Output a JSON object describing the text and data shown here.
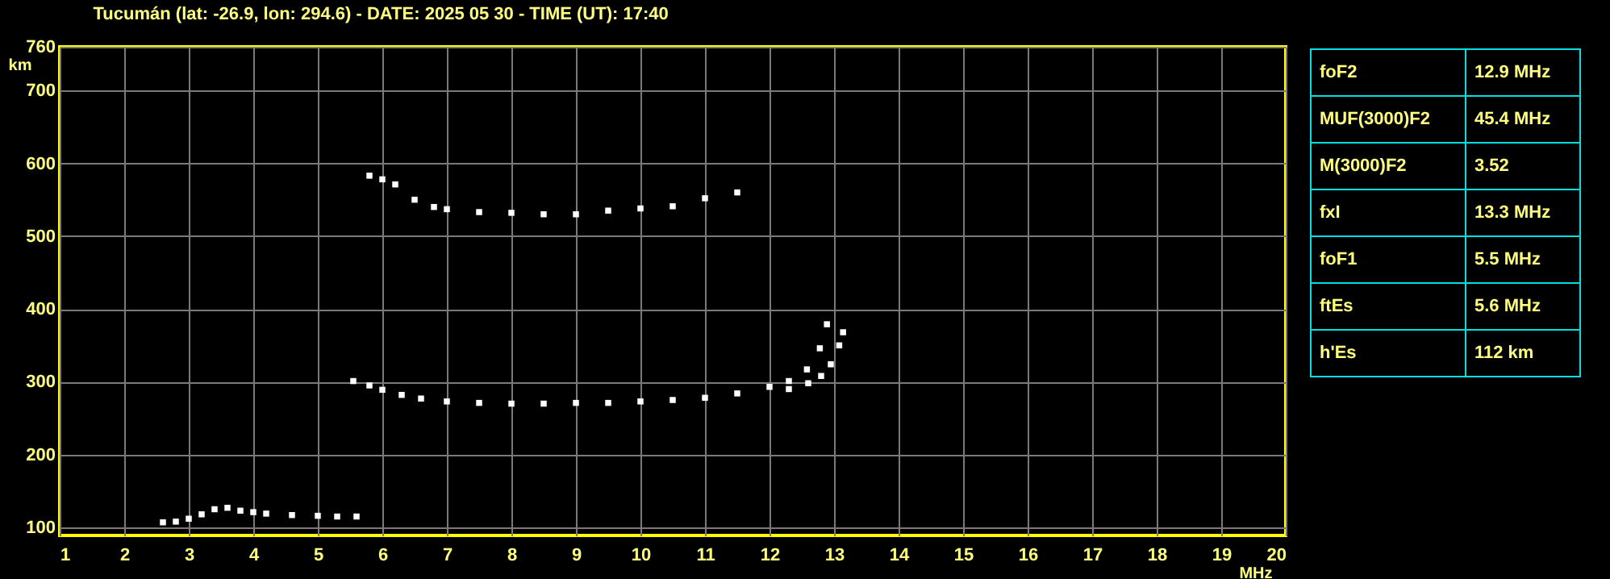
{
  "chart_data": [
    {
      "type": "scatter",
      "title": "Tucumán (lat: -26.9, lon: 294.6) - DATE: 2025 05 30 - TIME (UT): 17:40",
      "xlabel": "MHz",
      "ylabel": "km",
      "xlim": [
        1,
        20
      ],
      "ylim": [
        89,
        760
      ],
      "xticks": [
        1,
        2,
        3,
        4,
        5,
        6,
        7,
        8,
        9,
        10,
        11,
        12,
        13,
        14,
        15,
        16,
        17,
        18,
        19,
        20
      ],
      "yticks": [
        100,
        200,
        300,
        400,
        500,
        600,
        700,
        760
      ],
      "grid": true,
      "marker": "square",
      "legend": false,
      "series": [
        {
          "color": "#ffffff",
          "x": [
            5.55,
            5.8,
            6,
            6.3,
            6.6,
            7,
            7.5,
            8,
            8.5,
            9,
            9.5,
            10,
            10.5,
            11,
            11.5,
            12,
            12.3,
            12.58,
            12.78,
            12.89
          ],
          "values": [
            301,
            295,
            289,
            282,
            277,
            273,
            271,
            270,
            270,
            271,
            271,
            273,
            275,
            278,
            284,
            293,
            301,
            317,
            346,
            379
          ]
        },
        {
          "color": "#ffffff",
          "x": [
            12.3,
            12.6,
            12.8,
            12.95,
            13.08,
            13.14
          ],
          "values": [
            290,
            298,
            308,
            324,
            350,
            368
          ]
        },
        {
          "color": "#ffffff",
          "x": [
            2.6,
            2.8,
            3,
            3.2,
            3.4,
            3.6,
            3.8,
            4,
            4.2,
            4.6,
            5,
            5.3,
            5.6
          ],
          "values": [
            107,
            108,
            112,
            118,
            125,
            127,
            123,
            121,
            119,
            117,
            116,
            115,
            115
          ]
        },
        {
          "color": "#ffffff",
          "x": [
            5.8,
            6,
            6.2,
            6.5,
            6.8,
            7,
            7.5,
            8,
            8.5,
            9,
            9.5,
            10,
            10.5,
            11,
            11.5
          ],
          "values": [
            583,
            578,
            571,
            550,
            540,
            537,
            533,
            532,
            530,
            530,
            535,
            538,
            541,
            552,
            560
          ]
        }
      ]
    },
    {
      "type": "other",
      "categories": [
        "foF2",
        "MUF(3000)F2",
        "M(3000)F2",
        "fxI",
        "foF1",
        "ftEs",
        "h'Es"
      ],
      "value_labels": [
        "12.9 MHz",
        "45.4 MHz",
        "3.52",
        "13.3 MHz",
        "5.5 MHz",
        "5.6 MHz",
        "112 km"
      ]
    }
  ]
}
